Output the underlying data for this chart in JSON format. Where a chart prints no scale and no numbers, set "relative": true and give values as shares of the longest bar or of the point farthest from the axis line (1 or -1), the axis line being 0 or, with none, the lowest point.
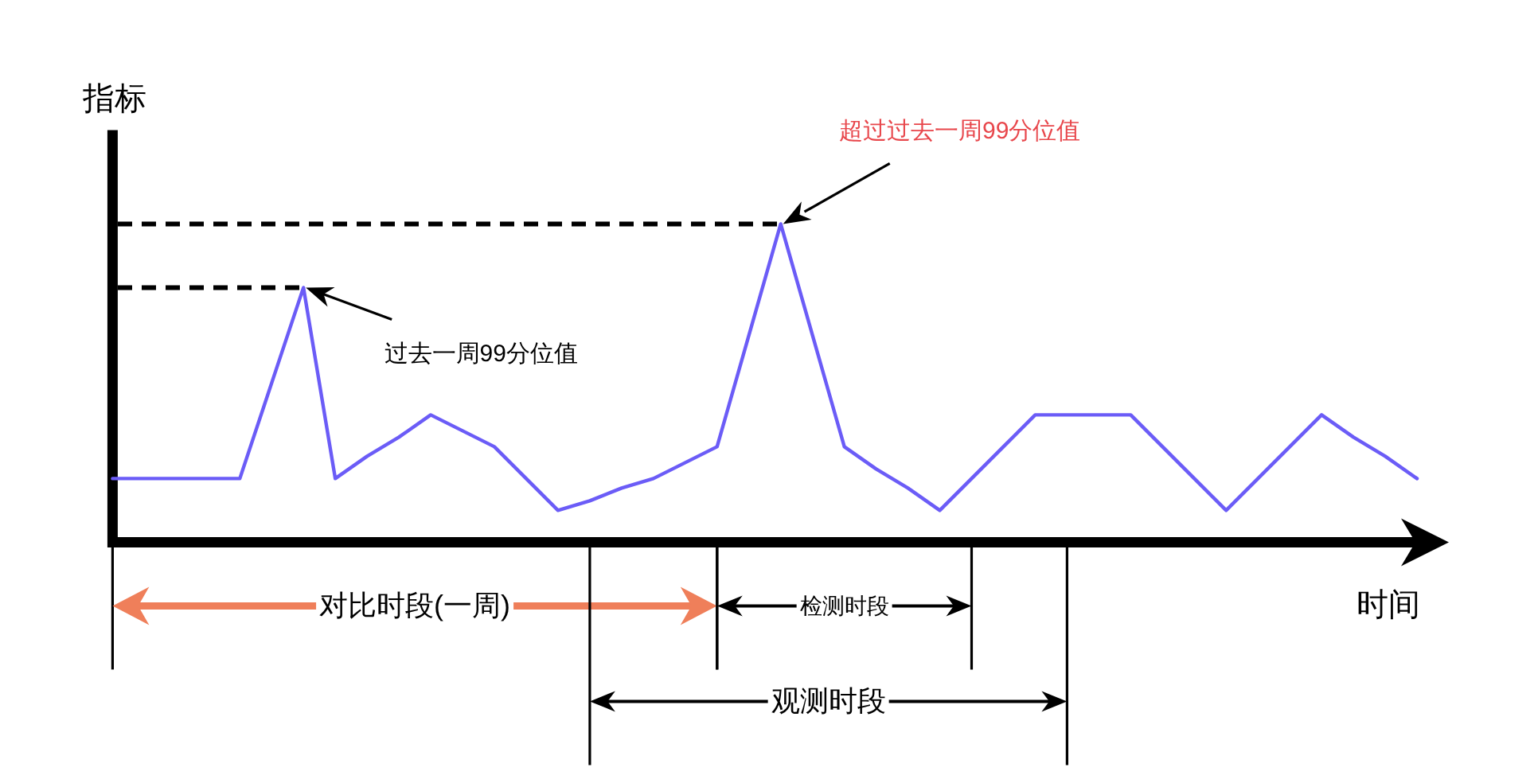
{
  "chart_data": {
    "type": "line",
    "ylabel": "指标",
    "xlabel": "时间",
    "relative": true,
    "categories": [
      null,
      null,
      null,
      null,
      null,
      null,
      null,
      null,
      null,
      null,
      null,
      null,
      null,
      null,
      null,
      null,
      null,
      null,
      null,
      null,
      null,
      null,
      null,
      null,
      null,
      null,
      null,
      null,
      null,
      null,
      null,
      null,
      null,
      null,
      null,
      null,
      null,
      null,
      null,
      null,
      null,
      null
    ],
    "series": [
      {
        "color": "#6b5cf7",
        "values": [
          0.2,
          0.2,
          0.2,
          0.2,
          0.2,
          0.5,
          0.8,
          0.2,
          0.27,
          0.33,
          0.4,
          0.35,
          0.3,
          0.2,
          0.1,
          0.13,
          0.17,
          0.2,
          0.25,
          0.3,
          0.65,
          1,
          0.65,
          0.3,
          0.23,
          0.17,
          0.1,
          0.2,
          0.3,
          0.4,
          0.4,
          0.4,
          0.4,
          0.3,
          0.2,
          0.1,
          0.2,
          0.3,
          0.4,
          0.33,
          0.27,
          0.2
        ]
      }
    ],
    "ref_lines": [
      {
        "axis": "y",
        "value": 0.8,
        "line_style": "dashed"
      },
      {
        "axis": "y",
        "value": 1,
        "line_style": "dashed"
      }
    ],
    "annotations": [
      "过去一周99分位值",
      "超过过去一周99分位值",
      "对比时段(一周)",
      "检测时段",
      "观测时段"
    ]
  }
}
